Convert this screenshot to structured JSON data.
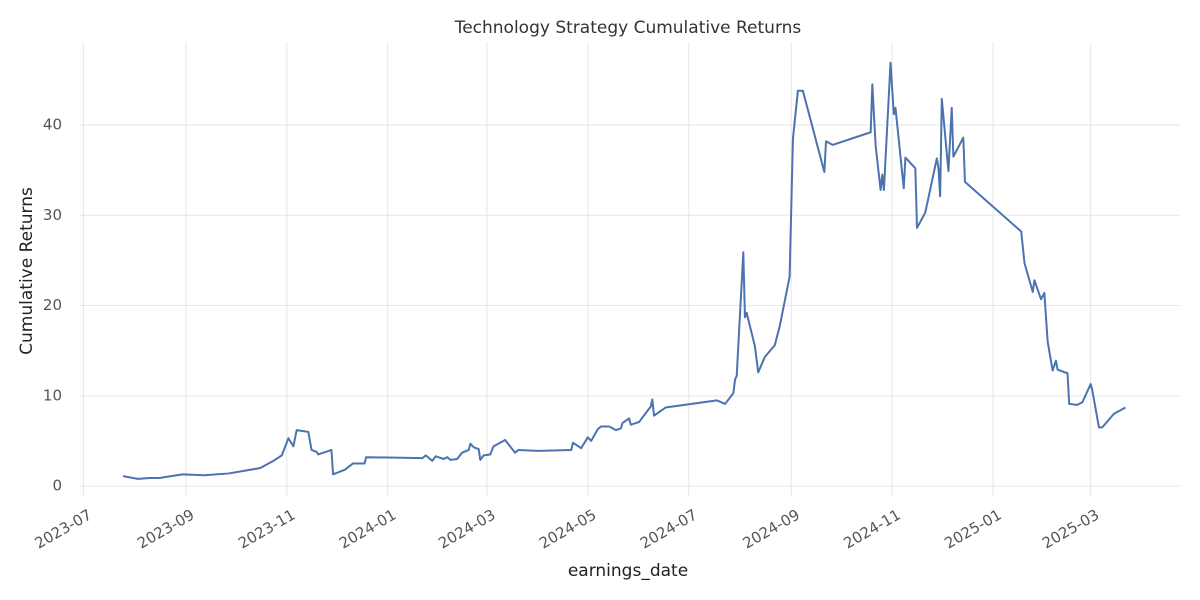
{
  "chart_data": {
    "type": "line",
    "title": "Technology Strategy Cumulative Returns",
    "x_label": "earnings_date",
    "y_label": "Cumulative Returns",
    "grid": true,
    "x": [
      "2023-07-25",
      "2023-08-03",
      "2023-08-10",
      "2023-08-16",
      "2023-08-23",
      "2023-08-30",
      "2023-09-12",
      "2023-09-27",
      "2023-10-16",
      "2023-10-24",
      "2023-10-29",
      "2023-11-02",
      "2023-11-05",
      "2023-11-07",
      "2023-11-14",
      "2023-11-16",
      "2023-11-19",
      "2023-11-20",
      "2023-11-28",
      "2023-11-29",
      "2023-12-06",
      "2023-12-11",
      "2023-12-18",
      "2023-12-19",
      "2024-01-22",
      "2024-01-24",
      "2024-01-28",
      "2024-01-30",
      "2024-02-04",
      "2024-02-06",
      "2024-02-08",
      "2024-02-12",
      "2024-02-15",
      "2024-02-19",
      "2024-02-20",
      "2024-02-22",
      "2024-02-25",
      "2024-02-26",
      "2024-02-28",
      "2024-03-03",
      "2024-03-05",
      "2024-03-12",
      "2024-03-18",
      "2024-03-20",
      "2024-04-01",
      "2024-04-21",
      "2024-04-22",
      "2024-04-27",
      "2024-05-01",
      "2024-05-03",
      "2024-05-07",
      "2024-05-09",
      "2024-05-14",
      "2024-05-18",
      "2024-05-21",
      "2024-05-22",
      "2024-05-26",
      "2024-05-27",
      "2024-06-01",
      "2024-06-08",
      "2024-06-09",
      "2024-06-10",
      "2024-06-17",
      "2024-07-18",
      "2024-07-23",
      "2024-07-28",
      "2024-07-29",
      "2024-07-30",
      "2024-08-03",
      "2024-08-04",
      "2024-08-05",
      "2024-08-10",
      "2024-08-12",
      "2024-08-16",
      "2024-08-22",
      "2024-08-25",
      "2024-08-31",
      "2024-09-02",
      "2024-09-05",
      "2024-09-08",
      "2024-09-21",
      "2024-09-22",
      "2024-09-26",
      "2024-10-19",
      "2024-10-20",
      "2024-10-22",
      "2024-10-25",
      "2024-10-26",
      "2024-10-27",
      "2024-10-31",
      "2024-11-02",
      "2024-11-03",
      "2024-11-08",
      "2024-11-09",
      "2024-11-15",
      "2024-11-16",
      "2024-11-21",
      "2024-11-28",
      "2024-11-29",
      "2024-11-30",
      "2024-12-01",
      "2024-12-05",
      "2024-12-07",
      "2024-12-08",
      "2024-12-14",
      "2024-12-15",
      "2025-01-18",
      "2025-01-20",
      "2025-01-25",
      "2025-01-26",
      "2025-01-30",
      "2025-02-01",
      "2025-02-03",
      "2025-02-06",
      "2025-02-08",
      "2025-02-09",
      "2025-02-15",
      "2025-02-16",
      "2025-02-21",
      "2025-02-24",
      "2025-03-01",
      "2025-03-02",
      "2025-03-06",
      "2025-03-08",
      "2025-03-15",
      "2025-03-22"
    ],
    "series": [
      {
        "name": "Cumulative Returns",
        "color": "#4c72b0",
        "values": [
          1.1,
          0.8,
          0.9,
          0.9,
          1.1,
          1.3,
          1.2,
          1.4,
          2.0,
          2.8,
          3.4,
          5.3,
          4.4,
          6.2,
          6.0,
          4.0,
          3.8,
          3.5,
          4.0,
          1.3,
          1.8,
          2.5,
          2.5,
          3.2,
          3.1,
          3.4,
          2.8,
          3.3,
          3.0,
          3.2,
          2.9,
          3.0,
          3.7,
          4.0,
          4.7,
          4.3,
          4.1,
          2.9,
          3.4,
          3.5,
          4.4,
          5.1,
          3.7,
          4.0,
          3.9,
          4.0,
          4.8,
          4.2,
          5.4,
          5.0,
          6.3,
          6.6,
          6.6,
          6.2,
          6.4,
          7.0,
          7.5,
          6.8,
          7.1,
          8.8,
          9.6,
          7.8,
          8.7,
          9.5,
          9.1,
          10.3,
          11.8,
          12.2,
          25.9,
          18.7,
          19.2,
          15.5,
          12.6,
          14.3,
          15.6,
          17.7,
          23.2,
          38.5,
          43.8,
          43.8,
          34.8,
          38.2,
          37.8,
          39.2,
          44.5,
          37.7,
          32.8,
          34.5,
          32.8,
          46.9,
          41.2,
          41.9,
          33.0,
          36.4,
          35.2,
          28.6,
          30.3,
          36.3,
          35.2,
          32.1,
          42.9,
          34.9,
          41.9,
          36.5,
          38.6,
          33.7,
          28.2,
          24.7,
          21.5,
          22.8,
          20.7,
          21.4,
          16.0,
          12.8,
          13.9,
          12.9,
          12.5,
          9.1,
          9.0,
          9.3,
          11.3,
          10.6,
          6.5,
          6.5,
          8.0,
          8.7
        ]
      }
    ],
    "xlim": [
      "2023-06-29",
      "2025-04-24"
    ],
    "xticks": [
      "2023-07",
      "2023-09",
      "2023-11",
      "2024-01",
      "2024-03",
      "2024-05",
      "2024-07",
      "2024-09",
      "2024-11",
      "2025-01",
      "2025-03"
    ],
    "ylim": [
      -1.1,
      49.2
    ],
    "yticks": [
      0,
      10,
      20,
      30,
      40
    ]
  }
}
